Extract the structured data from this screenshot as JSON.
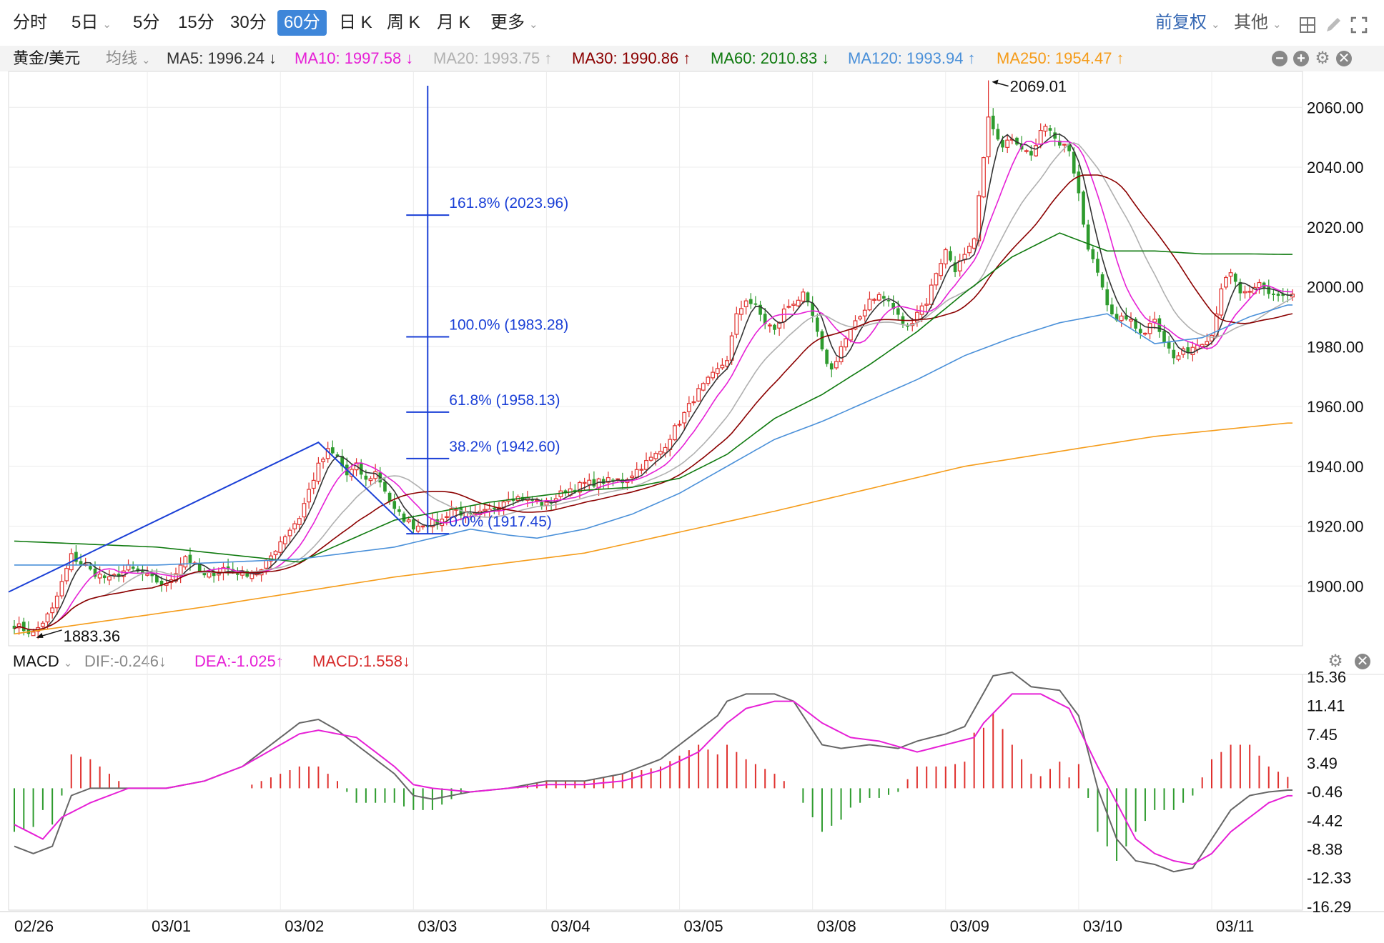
{
  "toolbar": {
    "tabs": [
      {
        "label": "分时",
        "dropdown": false,
        "active": false
      },
      {
        "label": "5日",
        "dropdown": true,
        "active": false
      },
      {
        "label": "5分",
        "dropdown": false,
        "active": false
      },
      {
        "label": "15分",
        "dropdown": false,
        "active": false
      },
      {
        "label": "30分",
        "dropdown": false,
        "active": false
      },
      {
        "label": "60分",
        "dropdown": false,
        "active": true
      },
      {
        "label": "日 K",
        "dropdown": false,
        "active": false
      },
      {
        "label": "周 K",
        "dropdown": false,
        "active": false
      },
      {
        "label": "月 K",
        "dropdown": false,
        "active": false
      },
      {
        "label": "更多",
        "dropdown": true,
        "active": false
      }
    ],
    "adjust_label": "前复权",
    "other_label": "其他",
    "dropdown_glyph": "⌄",
    "icons": [
      "grid-icon",
      "draw-pen-icon",
      "settings-icon",
      "fullscreen-icon"
    ]
  },
  "instrument": {
    "name": "黄金/美元",
    "indicator_select": "均线"
  },
  "ma_legend": [
    {
      "label": "MA5: 1996.24",
      "arrow": "↓",
      "color": "#333333"
    },
    {
      "label": "MA10: 1997.58",
      "arrow": "↓",
      "color": "#e620d6"
    },
    {
      "label": "MA20: 1993.75",
      "arrow": "↑",
      "color": "#b0b0b0"
    },
    {
      "label": "MA30: 1990.86",
      "arrow": "↑",
      "color": "#8b0000"
    },
    {
      "label": "MA60: 2010.83",
      "arrow": "↓",
      "color": "#0f7a0f"
    },
    {
      "label": "MA120: 1993.94",
      "arrow": "↑",
      "color": "#4a90d9"
    },
    {
      "label": "MA250: 1954.47",
      "arrow": "↑",
      "color": "#f59c1a"
    }
  ],
  "panel_icons": [
    "minus-icon",
    "plus-icon",
    "settings-icon",
    "close-icon"
  ],
  "macd_legend": {
    "name": "MACD",
    "dif": "DIF:-0.246↓",
    "dea": "DEA:-1.025↑",
    "macd": "MACD:1.558↓",
    "colors": {
      "dif": "#888888",
      "dea": "#e620d6",
      "macd": "#d62b2b"
    }
  },
  "chart_data": [
    {
      "type": "candlestick",
      "title": "黄金/美元 60分",
      "y_ticks": [
        "2060.00",
        "2040.00",
        "2020.00",
        "2000.00",
        "1980.00",
        "1960.00",
        "1940.00",
        "1920.00",
        "1900.00"
      ],
      "ylim": [
        1880,
        2072
      ],
      "x_ticks": [
        "02/26",
        "03/01",
        "03/02",
        "03/03",
        "03/04",
        "03/05",
        "03/08",
        "03/09",
        "03/10",
        "03/11"
      ],
      "high_annotation": "2069.01",
      "low_annotation": "1883.36",
      "fibonacci": [
        {
          "label": "161.8% (2023.96)",
          "value": 2023.96
        },
        {
          "label": "100.0% (1983.28)",
          "value": 1983.28
        },
        {
          "label": "61.8% (1958.13)",
          "value": 1958.13
        },
        {
          "label": "38.2% (1942.60)",
          "value": 1942.6
        },
        {
          "label": "0.0% (1917.45)",
          "value": 1917.45
        }
      ],
      "trend_points": [
        [
          "02/26",
          1898
        ],
        [
          "03/02",
          1948
        ],
        [
          "03/03",
          1917.45
        ]
      ],
      "close_anchors": [
        [
          0,
          1887
        ],
        [
          4,
          1884
        ],
        [
          8,
          1892
        ],
        [
          12,
          1910
        ],
        [
          16,
          1905
        ],
        [
          20,
          1902
        ],
        [
          24,
          1906
        ],
        [
          28,
          1903
        ],
        [
          32,
          1900
        ],
        [
          36,
          1910
        ],
        [
          40,
          1903
        ],
        [
          44,
          1906
        ],
        [
          48,
          1904
        ],
        [
          52,
          1905
        ],
        [
          56,
          1915
        ],
        [
          60,
          1923
        ],
        [
          62,
          1932
        ],
        [
          64,
          1940
        ],
        [
          66,
          1945
        ],
        [
          68,
          1943
        ],
        [
          70,
          1937
        ],
        [
          72,
          1940
        ],
        [
          74,
          1935
        ],
        [
          76,
          1938
        ],
        [
          78,
          1932
        ],
        [
          80,
          1925
        ],
        [
          84,
          1920
        ],
        [
          88,
          1921
        ],
        [
          90,
          1922
        ],
        [
          92,
          1926
        ],
        [
          96,
          1923
        ],
        [
          100,
          1925
        ],
        [
          104,
          1930
        ],
        [
          108,
          1929
        ],
        [
          112,
          1927
        ],
        [
          116,
          1932
        ],
        [
          120,
          1934
        ],
        [
          124,
          1935
        ],
        [
          128,
          1935
        ],
        [
          132,
          1940
        ],
        [
          136,
          1945
        ],
        [
          140,
          1955
        ],
        [
          144,
          1965
        ],
        [
          148,
          1972
        ],
        [
          150,
          1976
        ],
        [
          152,
          1990
        ],
        [
          154,
          1996
        ],
        [
          156,
          1993
        ],
        [
          158,
          1988
        ],
        [
          160,
          1985
        ],
        [
          162,
          1992
        ],
        [
          164,
          1995
        ],
        [
          166,
          1997
        ],
        [
          168,
          1990
        ],
        [
          170,
          1978
        ],
        [
          172,
          1972
        ],
        [
          174,
          1980
        ],
        [
          176,
          1985
        ],
        [
          178,
          1990
        ],
        [
          180,
          1996
        ],
        [
          182,
          1997
        ],
        [
          184,
          1995
        ],
        [
          186,
          1990
        ],
        [
          188,
          1986
        ],
        [
          190,
          1992
        ],
        [
          192,
          1995
        ],
        [
          194,
          2005
        ],
        [
          196,
          2012
        ],
        [
          198,
          2006
        ],
        [
          200,
          2010
        ],
        [
          202,
          2015
        ],
        [
          203,
          2030
        ],
        [
          204,
          2042
        ],
        [
          205,
          2058
        ],
        [
          206,
          2052
        ],
        [
          208,
          2046
        ],
        [
          210,
          2050
        ],
        [
          212,
          2047
        ],
        [
          214,
          2045
        ],
        [
          216,
          2052
        ],
        [
          218,
          2053
        ],
        [
          220,
          2048
        ],
        [
          222,
          2046
        ],
        [
          224,
          2030
        ],
        [
          226,
          2012
        ],
        [
          228,
          2005
        ],
        [
          230,
          1995
        ],
        [
          232,
          1988
        ],
        [
          234,
          1990
        ],
        [
          236,
          1986
        ],
        [
          238,
          1985
        ],
        [
          240,
          1990
        ],
        [
          242,
          1982
        ],
        [
          244,
          1976
        ],
        [
          246,
          1978
        ],
        [
          248,
          1980
        ],
        [
          250,
          1982
        ],
        [
          252,
          1984
        ],
        [
          254,
          2000
        ],
        [
          256,
          2004
        ],
        [
          258,
          1998
        ],
        [
          260,
          1997
        ],
        [
          262,
          2001
        ],
        [
          264,
          1998
        ],
        [
          266,
          1997
        ],
        [
          268,
          1997
        ]
      ],
      "series": [
        {
          "name": "MA5",
          "color": "#333333"
        },
        {
          "name": "MA10",
          "color": "#e620d6"
        },
        {
          "name": "MA20",
          "color": "#b0b0b0"
        },
        {
          "name": "MA30",
          "color": "#8b0000"
        },
        {
          "name": "MA60",
          "color": "#0f7a0f"
        },
        {
          "name": "MA120",
          "color": "#4a90d9"
        },
        {
          "name": "MA250",
          "color": "#f59c1a"
        }
      ],
      "ma_extras": {
        "MA60": [
          [
            0,
            1915
          ],
          [
            30,
            1913
          ],
          [
            60,
            1908
          ],
          [
            80,
            1922
          ],
          [
            100,
            1928
          ],
          [
            120,
            1932
          ],
          [
            130,
            1933
          ],
          [
            140,
            1936
          ],
          [
            150,
            1944
          ],
          [
            160,
            1956
          ],
          [
            170,
            1964
          ],
          [
            180,
            1974
          ],
          [
            190,
            1985
          ],
          [
            200,
            1998
          ],
          [
            210,
            2010
          ],
          [
            220,
            2018
          ],
          [
            230,
            2012
          ],
          [
            240,
            2012
          ],
          [
            250,
            2011
          ],
          [
            260,
            2011
          ],
          [
            268,
            2010.83
          ]
        ],
        "MA120": [
          [
            0,
            1907
          ],
          [
            30,
            1907
          ],
          [
            60,
            1909
          ],
          [
            80,
            1913
          ],
          [
            96,
            1919
          ],
          [
            104,
            1917
          ],
          [
            110,
            1916
          ],
          [
            120,
            1919
          ],
          [
            130,
            1924
          ],
          [
            140,
            1931
          ],
          [
            150,
            1940
          ],
          [
            160,
            1949
          ],
          [
            170,
            1955
          ],
          [
            180,
            1962
          ],
          [
            190,
            1969
          ],
          [
            200,
            1977
          ],
          [
            210,
            1983
          ],
          [
            220,
            1988
          ],
          [
            230,
            1991
          ],
          [
            240,
            1981
          ],
          [
            250,
            1983
          ],
          [
            260,
            1990
          ],
          [
            268,
            1993.94
          ]
        ],
        "MA250": [
          [
            0,
            1884
          ],
          [
            40,
            1893
          ],
          [
            80,
            1903
          ],
          [
            120,
            1911
          ],
          [
            160,
            1925
          ],
          [
            200,
            1940
          ],
          [
            240,
            1950
          ],
          [
            268,
            1954.47
          ]
        ]
      }
    },
    {
      "type": "macd",
      "y_ticks": [
        "15.36",
        "11.41",
        "7.45",
        "3.49",
        "-0.46",
        "-4.42",
        "-8.38",
        "-12.33",
        "-16.29"
      ],
      "ylim": [
        -16.8,
        15.7
      ],
      "dif_anchors": [
        [
          0,
          -8
        ],
        [
          4,
          -9
        ],
        [
          8,
          -8
        ],
        [
          12,
          -1
        ],
        [
          16,
          0
        ],
        [
          24,
          0
        ],
        [
          32,
          0
        ],
        [
          40,
          1
        ],
        [
          48,
          3
        ],
        [
          56,
          7
        ],
        [
          60,
          9
        ],
        [
          64,
          9.5
        ],
        [
          68,
          8
        ],
        [
          72,
          6
        ],
        [
          80,
          2
        ],
        [
          84,
          -1
        ],
        [
          88,
          -1.5
        ],
        [
          96,
          -0.5
        ],
        [
          104,
          0
        ],
        [
          112,
          1
        ],
        [
          120,
          1
        ],
        [
          128,
          2
        ],
        [
          136,
          4
        ],
        [
          140,
          6
        ],
        [
          144,
          8
        ],
        [
          148,
          10
        ],
        [
          150,
          12
        ],
        [
          154,
          13
        ],
        [
          160,
          13
        ],
        [
          164,
          12
        ],
        [
          170,
          6
        ],
        [
          174,
          5.5
        ],
        [
          180,
          6
        ],
        [
          186,
          5.5
        ],
        [
          190,
          6.5
        ],
        [
          196,
          7.5
        ],
        [
          200,
          8.5
        ],
        [
          203,
          12
        ],
        [
          206,
          15.5
        ],
        [
          210,
          16
        ],
        [
          214,
          14
        ],
        [
          220,
          13.5
        ],
        [
          224,
          10
        ],
        [
          228,
          0
        ],
        [
          232,
          -7
        ],
        [
          236,
          -10
        ],
        [
          240,
          -10.5
        ],
        [
          244,
          -11.5
        ],
        [
          248,
          -11
        ],
        [
          252,
          -7
        ],
        [
          256,
          -3
        ],
        [
          260,
          -1
        ],
        [
          264,
          -0.5
        ],
        [
          268,
          -0.25
        ]
      ],
      "dea_anchors": [
        [
          0,
          -5
        ],
        [
          6,
          -7
        ],
        [
          10,
          -4
        ],
        [
          16,
          -2
        ],
        [
          24,
          0
        ],
        [
          32,
          0
        ],
        [
          40,
          1
        ],
        [
          48,
          3
        ],
        [
          56,
          6
        ],
        [
          60,
          7.5
        ],
        [
          64,
          8
        ],
        [
          72,
          7
        ],
        [
          80,
          3
        ],
        [
          84,
          0.5
        ],
        [
          88,
          0
        ],
        [
          96,
          -0.5
        ],
        [
          104,
          0
        ],
        [
          112,
          0.5
        ],
        [
          120,
          0.5
        ],
        [
          128,
          1
        ],
        [
          136,
          2.5
        ],
        [
          144,
          5
        ],
        [
          150,
          9
        ],
        [
          154,
          11
        ],
        [
          160,
          12
        ],
        [
          164,
          12
        ],
        [
          170,
          9
        ],
        [
          176,
          7
        ],
        [
          182,
          6.5
        ],
        [
          190,
          5
        ],
        [
          196,
          6
        ],
        [
          202,
          7
        ],
        [
          204,
          9
        ],
        [
          210,
          13
        ],
        [
          216,
          13
        ],
        [
          222,
          11
        ],
        [
          228,
          3
        ],
        [
          232,
          -2
        ],
        [
          236,
          -7
        ],
        [
          240,
          -9
        ],
        [
          244,
          -10
        ],
        [
          248,
          -10.5
        ],
        [
          252,
          -9
        ],
        [
          256,
          -6
        ],
        [
          260,
          -4
        ],
        [
          264,
          -2
        ],
        [
          268,
          -1.03
        ]
      ]
    }
  ]
}
